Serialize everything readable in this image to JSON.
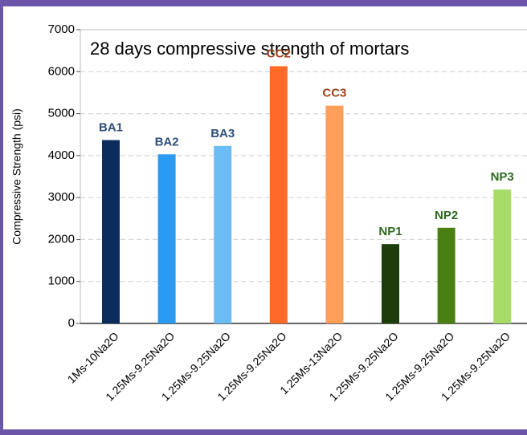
{
  "chart_data": {
    "type": "bar",
    "title": "28 days compressive strength of mortars",
    "y_label": "Compressive Strength (psi)",
    "categories": [
      "1Ms-10Na2O",
      "1.25Ms-9.25Na2O",
      "1.25Ms-9.25Na2O",
      "1.25Ms-9.25Na2O",
      "1.25Ms-13Na2O",
      "1.25Ms-9.25Na2O",
      "1.25Ms-9.25Na2O",
      "1.25Ms-9.25Na2O"
    ],
    "bar_labels": [
      "BA1",
      "BA2",
      "BA3",
      "CC2",
      "CC3",
      "NP1",
      "NP2",
      "NP3"
    ],
    "values": [
      4370,
      4030,
      4230,
      6130,
      5190,
      1890,
      2280,
      3190
    ],
    "colors": [
      "#0b2d5e",
      "#2b9af3",
      "#6cbcf5",
      "#ff6a26",
      "#ff9f5a",
      "#1d3d0a",
      "#4a7f12",
      "#a8dc6a"
    ],
    "label_colors": [
      "#2e4f78",
      "#2e4f78",
      "#2e4f78",
      "#a0401a",
      "#a0401a",
      "#2d6a1f",
      "#2d6a1f",
      "#2d6a1f"
    ],
    "ylim": [
      0,
      7000
    ],
    "yticks": [
      0,
      1000,
      2000,
      3000,
      4000,
      5000,
      6000,
      7000
    ],
    "grid": true
  }
}
